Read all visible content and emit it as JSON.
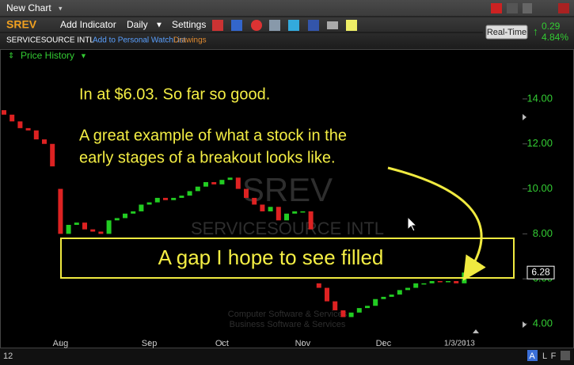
{
  "toolbar": {
    "chart_name": "New Chart",
    "symbol": "SREV",
    "add_indicator": "Add Indicator",
    "interval": "Daily",
    "settings": "Settings",
    "company": "SERVICESOURCE INTL",
    "watchlist": "Add to Personal WatchList",
    "drawings": "Drawings",
    "real_time": "Real-Time",
    "change": "0.29",
    "change_pct": "4.84%",
    "panel": "Price History"
  },
  "watermark": {
    "symbol": "SREV",
    "company": "SERVICESOURCE INTL",
    "sector": "Computer Software & Services",
    "industry": "Business Software & Services"
  },
  "footer": {
    "left": "12",
    "buttons": [
      "A",
      "L",
      "F"
    ]
  },
  "chart_data": {
    "type": "candlestick",
    "annotations": [
      "In at $6.03. So far so good.",
      "A great example of what a stock in the",
      "early stages of a breakout looks like.",
      "A gap I hope to see filled"
    ],
    "categories": [
      null,
      null,
      null,
      null,
      null,
      null,
      null,
      "Aug",
      null,
      null,
      null,
      null,
      null,
      null,
      null,
      null,
      null,
      null,
      "Sep",
      null,
      null,
      null,
      null,
      null,
      null,
      null,
      null,
      "Oct",
      null,
      null,
      null,
      null,
      null,
      null,
      null,
      null,
      null,
      "Nov",
      null,
      null,
      null,
      null,
      null,
      null,
      null,
      null,
      null,
      "Dec",
      null,
      null,
      null,
      null,
      null,
      null,
      null,
      null,
      null,
      "1/3/2013"
    ],
    "open": [
      13.5,
      13.3,
      13.0,
      12.7,
      12.6,
      12.2,
      12.0,
      10.0,
      8.0,
      8.4,
      8.5,
      8.2,
      8.1,
      8.0,
      8.6,
      8.7,
      8.9,
      9.0,
      9.3,
      9.4,
      9.6,
      9.5,
      9.6,
      9.7,
      9.9,
      10.1,
      10.3,
      10.2,
      10.4,
      10.5,
      10.0,
      9.6,
      9.3,
      9.0,
      9.2,
      8.6,
      8.9,
      9.0,
      9.0,
      5.8,
      5.6,
      5.0,
      4.6,
      4.3,
      4.5,
      4.7,
      4.8,
      5.1,
      5.2,
      5.3,
      5.5,
      5.6,
      5.8,
      5.8,
      5.9,
      5.85,
      5.9,
      5.8
    ],
    "close": [
      13.3,
      13.0,
      12.7,
      12.6,
      12.2,
      12.0,
      11.0,
      8.0,
      8.4,
      8.5,
      8.2,
      8.1,
      8.0,
      8.6,
      8.7,
      8.9,
      9.0,
      9.3,
      9.4,
      9.6,
      9.5,
      9.6,
      9.7,
      9.9,
      10.1,
      10.3,
      10.2,
      10.4,
      10.5,
      10.0,
      9.6,
      9.3,
      9.0,
      9.2,
      8.6,
      8.9,
      9.0,
      9.0,
      8.2,
      5.6,
      5.0,
      4.6,
      4.3,
      4.5,
      4.7,
      4.8,
      5.1,
      5.2,
      5.3,
      5.5,
      5.6,
      5.8,
      5.8,
      5.9,
      5.85,
      5.9,
      5.8,
      6.28
    ],
    "up_color": "#22cc22",
    "down_color": "#dd2222",
    "ylim": [
      3.26,
      15.3
    ],
    "yticks": [
      {
        "value": 4,
        "label": "4.00"
      },
      {
        "value": 6,
        "label": "6.00"
      },
      {
        "value": 8,
        "label": "8.00"
      },
      {
        "value": 10,
        "label": "10.00"
      },
      {
        "value": 12,
        "label": "12.00"
      },
      {
        "value": 14,
        "label": "14.00"
      }
    ]
  }
}
